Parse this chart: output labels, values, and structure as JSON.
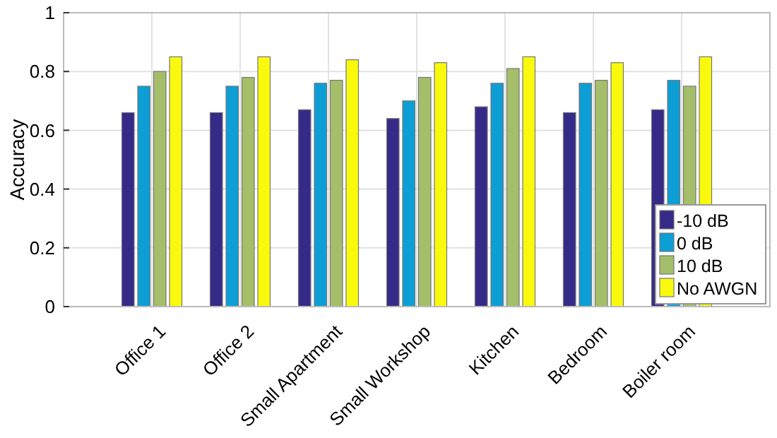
{
  "chart_data": {
    "type": "bar",
    "ylabel": "Accuracy",
    "categories": [
      "Office 1",
      "Office 2",
      "Small Apartment",
      "Small Workshop",
      "Kitchen",
      "Bedroom",
      "Boiler room"
    ],
    "series": [
      {
        "name": "-10 dB",
        "color": "#352a87",
        "values": [
          0.66,
          0.66,
          0.67,
          0.64,
          0.68,
          0.66,
          0.67
        ]
      },
      {
        "name": "0 dB",
        "color": "#0d9ed6",
        "values": [
          0.75,
          0.75,
          0.76,
          0.7,
          0.76,
          0.76,
          0.77
        ]
      },
      {
        "name": "10 dB",
        "color": "#a5be6a",
        "values": [
          0.8,
          0.78,
          0.77,
          0.78,
          0.81,
          0.77,
          0.75
        ]
      },
      {
        "name": "No AWGN",
        "color": "#f9f90e",
        "values": [
          0.85,
          0.85,
          0.84,
          0.83,
          0.85,
          0.83,
          0.85
        ]
      }
    ],
    "ylim": [
      0,
      1
    ],
    "yticks": [
      0,
      0.2,
      0.4,
      0.6,
      0.8,
      1
    ],
    "grid": true,
    "legend": "bottom right"
  }
}
